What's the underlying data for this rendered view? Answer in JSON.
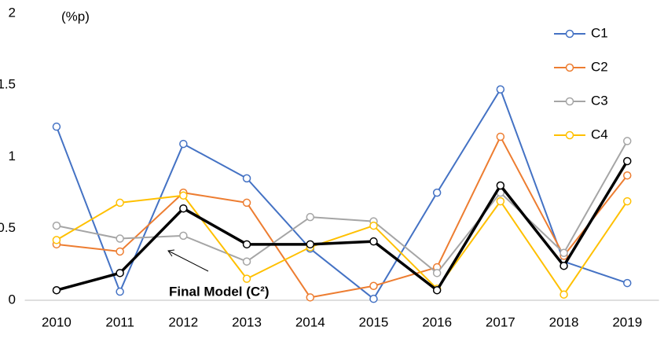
{
  "chart_data": {
    "type": "line",
    "categories": [
      "2010",
      "2011",
      "2012",
      "2013",
      "2014",
      "2015",
      "2016",
      "2017",
      "2018",
      "2019"
    ],
    "series": [
      {
        "name": "C1",
        "color": "#4472c4",
        "values": [
          1.21,
          0.06,
          1.09,
          0.85,
          0.36,
          0.01,
          0.75,
          1.47,
          0.27,
          0.12
        ]
      },
      {
        "name": "C2",
        "color": "#ed7d31",
        "values": [
          0.39,
          0.34,
          0.75,
          0.68,
          0.02,
          0.1,
          0.23,
          1.14,
          0.31,
          0.87
        ]
      },
      {
        "name": "C3",
        "color": "#a5a5a5",
        "values": [
          0.52,
          0.43,
          0.45,
          0.27,
          0.58,
          0.55,
          0.19,
          0.75,
          0.33,
          1.11
        ]
      },
      {
        "name": "C4",
        "color": "#ffc000",
        "values": [
          0.42,
          0.68,
          0.73,
          0.15,
          0.37,
          0.52,
          0.08,
          0.69,
          0.04,
          0.69
        ]
      },
      {
        "color": "#000000",
        "values": [
          0.07,
          0.19,
          0.64,
          0.39,
          0.39,
          0.41,
          0.07,
          0.8,
          0.24,
          0.97
        ]
      }
    ],
    "ylim": [
      0,
      2
    ],
    "yticks": [
      0,
      0.5,
      1,
      1.5,
      2
    ],
    "grid": false,
    "legend": "upper right",
    "annotations": [
      "(%p)",
      "Final Model (C²)"
    ]
  }
}
